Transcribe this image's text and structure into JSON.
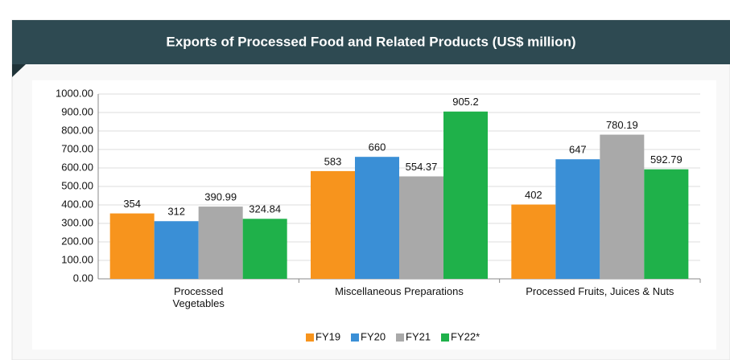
{
  "chart_data": {
    "type": "bar",
    "title": "Exports of Processed Food and Related Products (US$ million)",
    "categories": [
      "Processed\nVegetables",
      "Miscellaneous Preparations",
      "Processed Fruits, Juices & Nuts"
    ],
    "series": [
      {
        "name": "FY19",
        "color": "#f7941d",
        "values": [
          354,
          583,
          402
        ]
      },
      {
        "name": "FY20",
        "color": "#3a8fd6",
        "values": [
          312,
          660,
          647
        ]
      },
      {
        "name": "FY21",
        "color": "#a9a9a9",
        "values": [
          390.99,
          554.37,
          780.19
        ]
      },
      {
        "name": "FY22*",
        "color": "#1fb14a",
        "values": [
          324.84,
          905.2,
          592.79
        ]
      }
    ],
    "ylim": [
      0,
      1000
    ],
    "yticks": [
      {
        "value": 0,
        "label": "0.00"
      },
      {
        "value": 100,
        "label": "100.00"
      },
      {
        "value": 200,
        "label": "200.00"
      },
      {
        "value": 300,
        "label": "300.00"
      },
      {
        "value": 400,
        "label": "400.00"
      },
      {
        "value": 500,
        "label": "500.00"
      },
      {
        "value": 600,
        "label": "600.00"
      },
      {
        "value": 700,
        "label": "700.00"
      },
      {
        "value": 800,
        "label": "800.00"
      },
      {
        "value": 900,
        "label": "900.00"
      },
      {
        "value": 1000,
        "label": "1000.00"
      }
    ],
    "grid": true,
    "legend": "bottom"
  }
}
